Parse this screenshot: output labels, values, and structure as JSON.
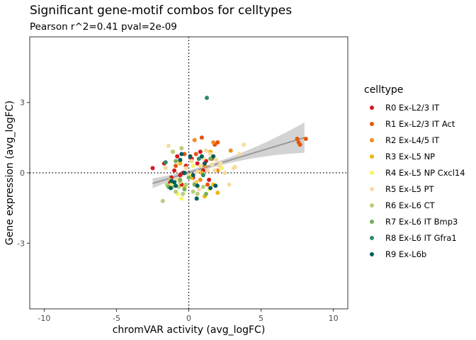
{
  "chart_data": {
    "type": "scatter",
    "title": "Significant gene-motif combos for celltypes",
    "subtitle": "Pearson r^2=0.41 pval=2e-09",
    "xlabel": "chromVAR activity (avg_logFC)",
    "ylabel": "Gene expression (avg_logFC)",
    "xlim": [
      -11,
      11
    ],
    "ylim": [
      -5.8,
      5.8
    ],
    "xticks": [
      -10,
      -5,
      0,
      5,
      10
    ],
    "yticks": [
      -3,
      0,
      3
    ],
    "xtick_labels": [
      "-10",
      "-5",
      "0",
      "5",
      "10"
    ],
    "ytick_labels": [
      "-3",
      "0",
      "3"
    ],
    "grid": false,
    "reference_lines": {
      "x": 0,
      "y": 0,
      "style": "dotted"
    },
    "fit": {
      "type": "linear",
      "x_range": [
        -2.5,
        8
      ],
      "y_range": [
        -0.45,
        1.5
      ],
      "ci_band": true
    },
    "legend": {
      "title": "celltype",
      "position": "right",
      "entries": [
        {
          "name": "R0 Ex-L2/3 IT",
          "color": "#d7191c"
        },
        {
          "name": "R1 Ex-L2/3 IT Act",
          "color": "#e6550d"
        },
        {
          "name": "R2 Ex-L4/5 IT",
          "color": "#f28c1e"
        },
        {
          "name": "R3 Ex-L5 NP",
          "color": "#f1b60f"
        },
        {
          "name": "R4 Ex-L5 NP Cxcl14",
          "color": "#f9f36b"
        },
        {
          "name": "R5 Ex-L5 PT",
          "color": "#f8dba0"
        },
        {
          "name": "R6 Ex-L6 CT",
          "color": "#b6cf7a"
        },
        {
          "name": "R7 Ex-L6 IT Bmp3",
          "color": "#76b05a"
        },
        {
          "name": "R8 Ex-L6 IT Gfra1",
          "color": "#2e8b6b"
        },
        {
          "name": "R9 Ex-L6b",
          "color": "#015f5a"
        }
      ]
    },
    "series": [
      {
        "name": "R0 Ex-L2/3 IT",
        "points": [
          [
            -2.5,
            0.2
          ],
          [
            -1.7,
            0.4
          ],
          [
            -1.2,
            -0.2
          ],
          [
            -1.0,
            0.1
          ],
          [
            -0.8,
            0.7
          ],
          [
            -0.6,
            -0.1
          ],
          [
            -0.4,
            0.0
          ],
          [
            -0.2,
            0.3
          ],
          [
            0.3,
            -0.2
          ],
          [
            0.6,
            0.4
          ],
          [
            0.8,
            0.9
          ],
          [
            1.0,
            0.1
          ],
          [
            1.2,
            0.5
          ],
          [
            -1.3,
            -0.4
          ],
          [
            0.2,
            0.6
          ],
          [
            -0.5,
            -0.5
          ],
          [
            1.4,
            -0.3
          ]
        ]
      },
      {
        "name": "R1 Ex-L2/3 IT Act",
        "points": [
          [
            0.5,
            0.8
          ],
          [
            0.9,
            1.5
          ],
          [
            1.3,
            -0.5
          ],
          [
            1.8,
            1.2
          ],
          [
            2.0,
            1.3
          ],
          [
            7.6,
            1.3
          ],
          [
            7.7,
            1.2
          ],
          [
            8.1,
            1.45
          ],
          [
            -0.9,
            0.3
          ],
          [
            0.3,
            -0.1
          ],
          [
            1.6,
            0.6
          ],
          [
            -0.3,
            0.8
          ],
          [
            7.5,
            1.45
          ]
        ]
      },
      {
        "name": "R2 Ex-L4/5 IT",
        "points": [
          [
            0.8,
            -0.3
          ],
          [
            2.0,
            0.1
          ],
          [
            2.9,
            0.95
          ],
          [
            1.7,
            1.3
          ],
          [
            0.4,
            1.4
          ],
          [
            -0.6,
            0.5
          ],
          [
            1.1,
            0.3
          ],
          [
            -1.1,
            0.9
          ]
        ]
      },
      {
        "name": "R3 Ex-L5 NP",
        "points": [
          [
            0.2,
            -0.2
          ],
          [
            1.1,
            -1.0
          ],
          [
            2.0,
            -0.85
          ],
          [
            -0.3,
            -0.6
          ],
          [
            0.5,
            -0.4
          ],
          [
            1.5,
            0.9
          ],
          [
            -0.6,
            0.4
          ],
          [
            0.9,
            0.0
          ],
          [
            1.7,
            -0.5
          ]
        ]
      },
      {
        "name": "R4 Ex-L5 NP Cxcl14",
        "points": [
          [
            -0.8,
            -0.9
          ],
          [
            0.1,
            -0.1
          ],
          [
            1.4,
            -0.7
          ],
          [
            -1.2,
            -0.5
          ],
          [
            0.3,
            0.3
          ],
          [
            2.3,
            0.2
          ],
          [
            -0.5,
            -1.1
          ]
        ]
      },
      {
        "name": "R5 Ex-L5 PT",
        "points": [
          [
            -1.4,
            1.15
          ],
          [
            -0.8,
            -0.3
          ],
          [
            0.2,
            0.5
          ],
          [
            0.8,
            0.3
          ],
          [
            1.3,
            0.1
          ],
          [
            1.5,
            0.8
          ],
          [
            2.2,
            0.4
          ],
          [
            2.8,
            -0.5
          ],
          [
            3.1,
            0.2
          ],
          [
            3.8,
            1.2
          ],
          [
            3.5,
            0.8
          ],
          [
            0.6,
            0.05
          ],
          [
            1.9,
            0.55
          ],
          [
            -0.2,
            0.2
          ],
          [
            1.0,
            0.6
          ],
          [
            2.5,
            0.0
          ],
          [
            0.4,
            -0.4
          ],
          [
            1.6,
            0.35
          ],
          [
            3.2,
            0.25
          ],
          [
            -1.6,
            0.2
          ],
          [
            0.7,
            -0.7
          ],
          [
            2.1,
            0.3
          ],
          [
            1.2,
            0.95
          ],
          [
            1.8,
            0.1
          ]
        ]
      },
      {
        "name": "R6 Ex-L6 CT",
        "points": [
          [
            -1.8,
            -1.2
          ],
          [
            -1.5,
            -0.5
          ],
          [
            -1.3,
            -0.3
          ],
          [
            -1.1,
            -0.6
          ],
          [
            -0.9,
            -0.8
          ],
          [
            -0.7,
            -0.6
          ],
          [
            -0.6,
            -0.4
          ],
          [
            -0.4,
            -0.9
          ],
          [
            -0.2,
            -0.5
          ],
          [
            0.3,
            -0.8
          ],
          [
            0.6,
            -0.9
          ],
          [
            1.0,
            -0.6
          ],
          [
            -1.1,
            0.9
          ],
          [
            -0.5,
            1.05
          ]
        ]
      },
      {
        "name": "R7 Ex-L6 IT Bmp3",
        "points": [
          [
            -1.4,
            -0.6
          ],
          [
            -1.0,
            -0.4
          ],
          [
            -0.6,
            -0.3
          ],
          [
            -0.3,
            -0.7
          ],
          [
            0.0,
            -0.2
          ],
          [
            0.4,
            -0.5
          ],
          [
            -0.9,
            0.5
          ],
          [
            1.5,
            0.6
          ],
          [
            1.2,
            -0.9
          ]
        ]
      },
      {
        "name": "R8 Ex-L6 IT Gfra1",
        "points": [
          [
            1.25,
            3.2
          ],
          [
            0.7,
            0.6
          ],
          [
            -1.6,
            0.45
          ],
          [
            1.0,
            -0.1
          ]
        ]
      },
      {
        "name": "R9 Ex-L6b",
        "points": [
          [
            -1.2,
            -0.35
          ],
          [
            -1.0,
            -0.4
          ],
          [
            -0.9,
            -0.55
          ],
          [
            -0.6,
            0.55
          ],
          [
            0.1,
            0.7
          ],
          [
            0.3,
            -0.1
          ],
          [
            0.6,
            -0.55
          ],
          [
            0.9,
            0.7
          ],
          [
            1.5,
            -0.65
          ],
          [
            1.7,
            0.7
          ],
          [
            1.85,
            -0.55
          ],
          [
            -0.5,
            0.8
          ],
          [
            -1.25,
            -0.65
          ],
          [
            0.55,
            -1.1
          ],
          [
            -0.3,
            0.0
          ],
          [
            1.1,
            0.4
          ]
        ]
      }
    ]
  }
}
